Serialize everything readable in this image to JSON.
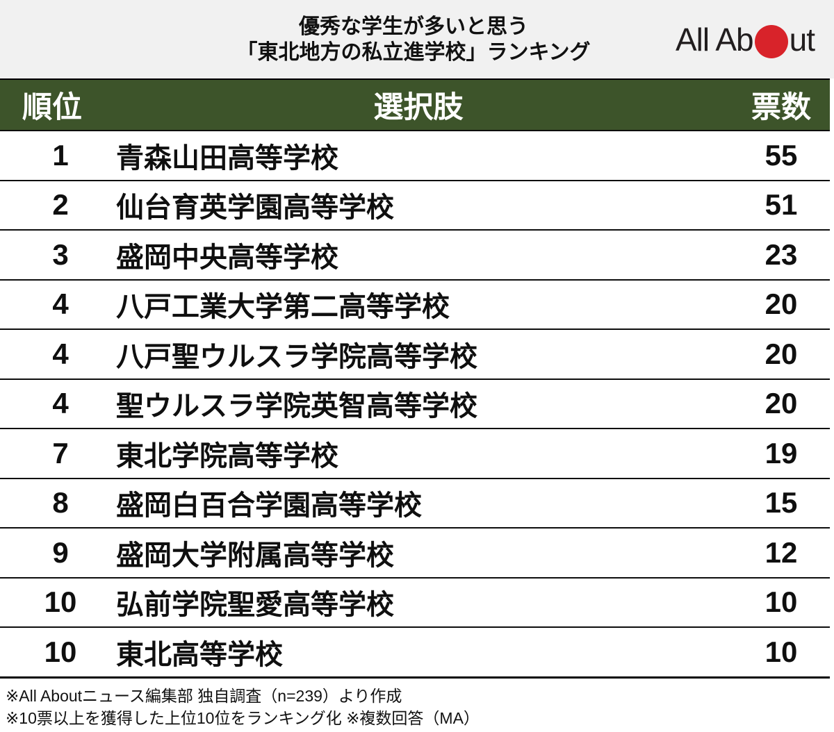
{
  "header": {
    "title_line1": "優秀な学生が多いと思う",
    "title_line2": "「東北地方の私立進学校」ランキング",
    "logo": {
      "text_left": "All Ab",
      "text_right": "ut",
      "dot_icon": "red-circle"
    }
  },
  "colors": {
    "header_band_bg": "#f1f1f1",
    "table_header_bg": "#3d542a",
    "logo_red": "#d8232a",
    "text": "#0f0f0f"
  },
  "table": {
    "columns": [
      "順位",
      "選択肢",
      "票数"
    ],
    "rows": [
      {
        "rank": "1",
        "school": "青森山田高等学校",
        "votes": "55"
      },
      {
        "rank": "2",
        "school": "仙台育英学園高等学校",
        "votes": "51"
      },
      {
        "rank": "3",
        "school": "盛岡中央高等学校",
        "votes": "23"
      },
      {
        "rank": "4",
        "school": "八戸工業大学第二高等学校",
        "votes": "20"
      },
      {
        "rank": "4",
        "school": "八戸聖ウルスラ学院高等学校",
        "votes": "20"
      },
      {
        "rank": "4",
        "school": "聖ウルスラ学院英智高等学校",
        "votes": "20"
      },
      {
        "rank": "7",
        "school": "東北学院高等学校",
        "votes": "19"
      },
      {
        "rank": "8",
        "school": "盛岡白百合学園高等学校",
        "votes": "15"
      },
      {
        "rank": "9",
        "school": "盛岡大学附属高等学校",
        "votes": "12"
      },
      {
        "rank": "10",
        "school": "弘前学院聖愛高等学校",
        "votes": "10"
      },
      {
        "rank": "10",
        "school": "東北高等学校",
        "votes": "10"
      }
    ]
  },
  "footer": {
    "note1": "※All Aboutニュース編集部 独自調査（n=239）より作成",
    "note2": "※10票以上を獲得した上位10位をランキング化 ※複数回答（MA）"
  },
  "chart_data": {
    "type": "table",
    "title": "優秀な学生が多いと思う「東北地方の私立進学校」ランキング",
    "columns": [
      "順位",
      "選択肢",
      "票数"
    ],
    "categories": [
      "青森山田高等学校",
      "仙台育英学園高等学校",
      "盛岡中央高等学校",
      "八戸工業大学第二高等学校",
      "八戸聖ウルスラ学院高等学校",
      "聖ウルスラ学院英智高等学校",
      "東北学院高等学校",
      "盛岡白百合学園高等学校",
      "盛岡大学附属高等学校",
      "弘前学院聖愛高等学校",
      "東北高等学校"
    ],
    "ranks": [
      1,
      2,
      3,
      4,
      4,
      4,
      7,
      8,
      9,
      10,
      10
    ],
    "values": [
      55,
      51,
      23,
      20,
      20,
      20,
      19,
      15,
      12,
      10,
      10
    ],
    "notes": [
      "※All Aboutニュース編集部 独自調査（n=239）より作成",
      "※10票以上を獲得した上位10位をランキング化 ※複数回答（MA）"
    ]
  }
}
